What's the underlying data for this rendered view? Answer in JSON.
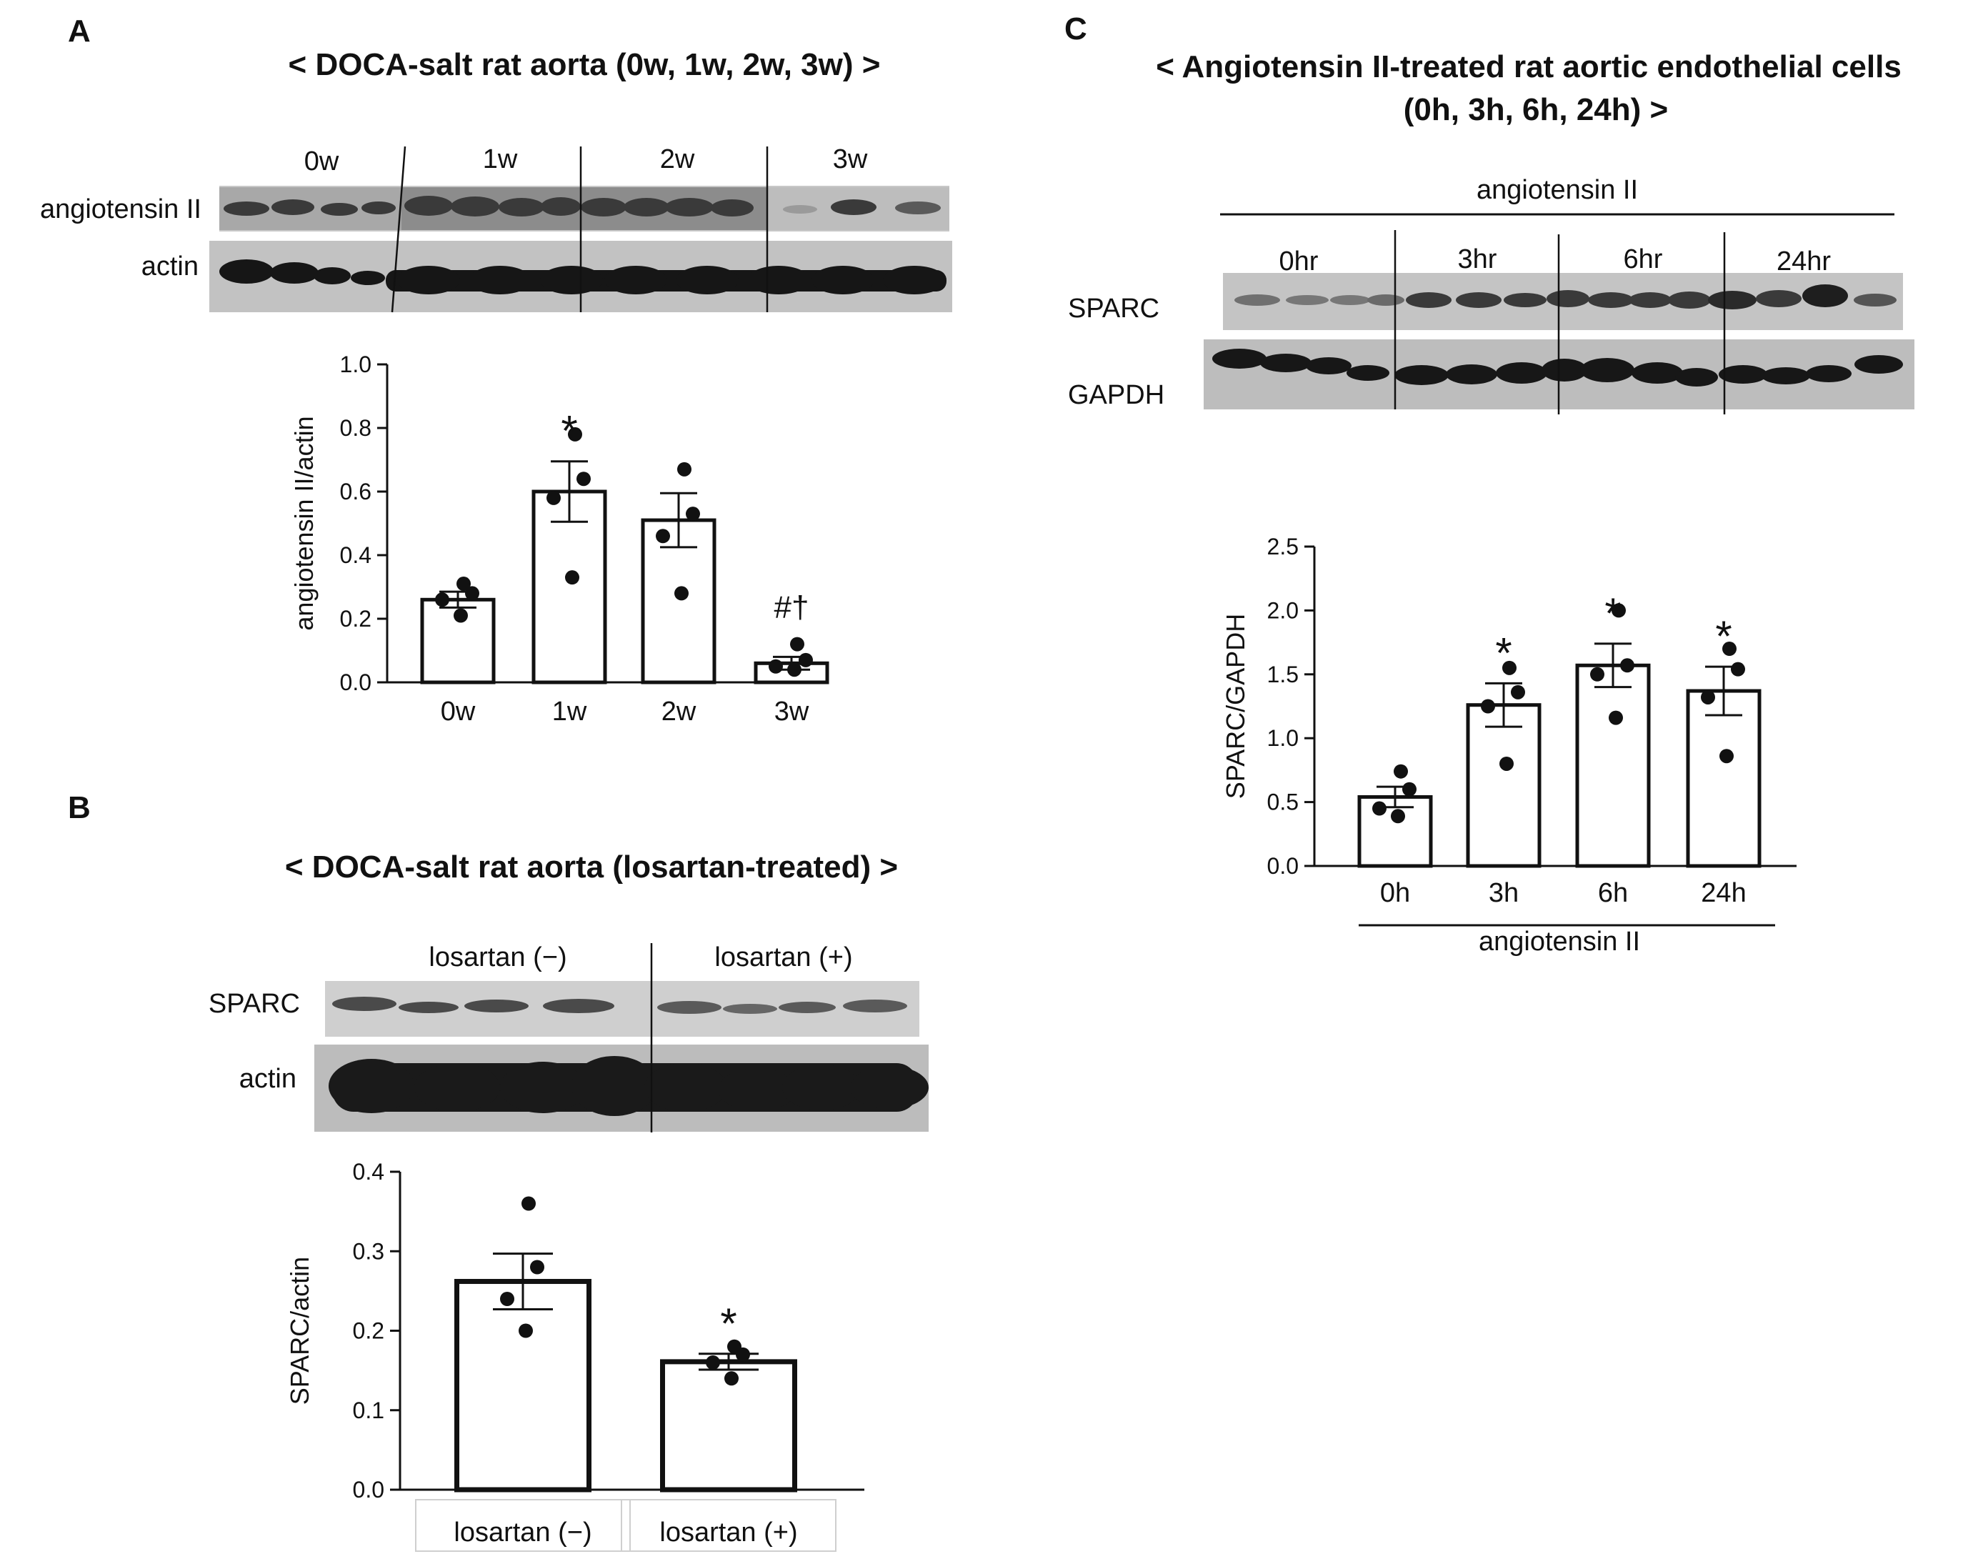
{
  "panels": {
    "A": {
      "letter": "A",
      "title": "< DOCA-salt rat aorta (0w, 1w, 2w, 3w) >",
      "blot_rows": [
        "angiotensin II",
        "actin"
      ],
      "lane_groups": [
        "0w",
        "1w",
        "2w",
        "3w"
      ]
    },
    "B": {
      "letter": "B",
      "title": "< DOCA-salt rat aorta (losartan-treated) >",
      "blot_rows": [
        "SPARC",
        "actin"
      ],
      "lane_groups": [
        "losartan (−)",
        "losartan (+)"
      ]
    },
    "C": {
      "letter": "C",
      "title_line1": "< Angiotensin II-treated rat aortic endothelial cells",
      "title_line2": "(0h, 3h, 6h, 24h) >",
      "treatment_label": "angiotensin II",
      "blot_rows": [
        "SPARC",
        "GAPDH"
      ],
      "lane_groups": [
        "0hr",
        "3hr",
        "6hr",
        "24hr"
      ]
    }
  },
  "chart_data": [
    {
      "panel": "A",
      "type": "bar",
      "categories": [
        "0w",
        "1w",
        "2w",
        "3w"
      ],
      "values": [
        0.26,
        0.6,
        0.51,
        0.06
      ],
      "errors": [
        0.025,
        0.095,
        0.085,
        0.02
      ],
      "points": [
        [
          0.31,
          0.28,
          0.26,
          0.21
        ],
        [
          0.78,
          0.64,
          0.58,
          0.33
        ],
        [
          0.67,
          0.53,
          0.46,
          0.28
        ],
        [
          0.12,
          0.07,
          0.05,
          0.04
        ]
      ],
      "annotations": [
        "",
        "*",
        "",
        "#†"
      ],
      "ylabel": "angiotensin II/actin",
      "ylim": [
        0,
        1.0
      ],
      "yticks": [
        "0.0",
        "0.2",
        "0.4",
        "0.6",
        "0.8",
        "1.0"
      ]
    },
    {
      "panel": "B",
      "type": "bar",
      "categories": [
        "losartan (−)",
        "losartan (+)"
      ],
      "values": [
        0.262,
        0.161
      ],
      "errors": [
        0.035,
        0.01
      ],
      "points": [
        [
          0.36,
          0.28,
          0.24,
          0.2
        ],
        [
          0.18,
          0.17,
          0.16,
          0.14
        ]
      ],
      "annotations": [
        "",
        "*"
      ],
      "ylabel": "SPARC/actin",
      "ylim": [
        0,
        0.4
      ],
      "yticks": [
        "0.0",
        "0.1",
        "0.2",
        "0.3",
        "0.4"
      ]
    },
    {
      "panel": "C",
      "type": "bar",
      "categories": [
        "0h",
        "3h",
        "6h",
        "24h"
      ],
      "values": [
        0.54,
        1.26,
        1.57,
        1.37
      ],
      "errors": [
        0.08,
        0.17,
        0.17,
        0.19
      ],
      "points": [
        [
          0.74,
          0.6,
          0.45,
          0.39
        ],
        [
          1.55,
          1.36,
          1.25,
          0.8
        ],
        [
          2.0,
          1.57,
          1.5,
          1.16
        ],
        [
          1.7,
          1.54,
          1.32,
          0.86
        ]
      ],
      "annotations": [
        "",
        "*",
        "*",
        "*"
      ],
      "ylabel": "SPARC/GAPDH",
      "xlabel": "angiotensin II",
      "ylim": [
        0,
        2.5
      ],
      "yticks": [
        "0.0",
        "0.5",
        "1.0",
        "1.5",
        "2.0",
        "2.5"
      ]
    }
  ]
}
